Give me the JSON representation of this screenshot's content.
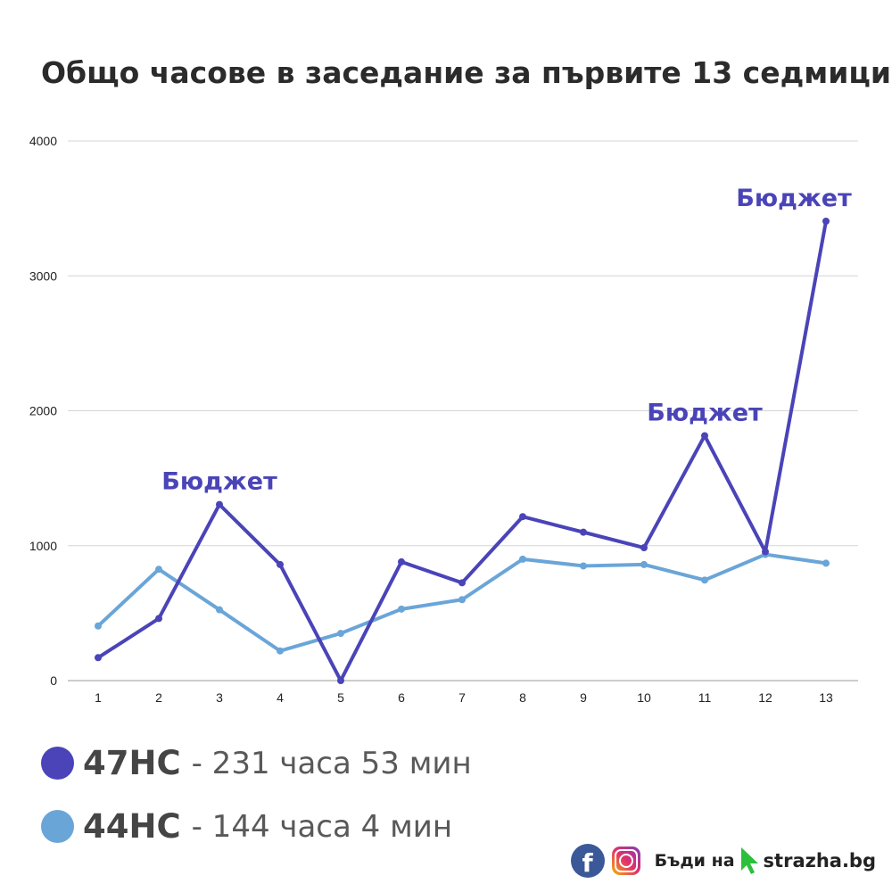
{
  "chart_data": {
    "type": "line",
    "title": "Общо часове в заседание за първите 13 седмици",
    "categories": [
      "1",
      "2",
      "3",
      "4",
      "5",
      "6",
      "7",
      "8",
      "9",
      "10",
      "11",
      "12",
      "13"
    ],
    "yticks": [
      "0",
      "1000",
      "2000",
      "3000",
      "4000"
    ],
    "ylim": [
      0,
      4000
    ],
    "grid": true,
    "series": [
      {
        "name": "47НС",
        "color": "#4a44b8",
        "values": [
          170,
          460,
          1305,
          860,
          0,
          880,
          725,
          1215,
          1100,
          985,
          1815,
          955,
          3405
        ]
      },
      {
        "name": "44НС",
        "color": "#6aa5d8",
        "values": [
          405,
          825,
          525,
          220,
          350,
          530,
          600,
          900,
          850,
          860,
          745,
          935,
          870
        ]
      }
    ],
    "annotations": [
      {
        "text": "Бюджет",
        "x": "3",
        "y": 1305
      },
      {
        "text": "Бюджет",
        "x": "11",
        "y": 1815
      },
      {
        "text": "Бюджет",
        "x": "13",
        "y": 3405
      }
    ]
  },
  "legend": [
    {
      "name": "47НС",
      "desc": "- 231 часа 53 мин",
      "color": "#4a44b8"
    },
    {
      "name": "44НС",
      "desc": "- 144 часа 4 мин",
      "color": "#6aa5d8"
    }
  ],
  "footer": {
    "facebook_icon": "f",
    "slogan": "Бъди на",
    "site": "strazha.bg",
    "cursor_color": "#2bbf3a"
  }
}
